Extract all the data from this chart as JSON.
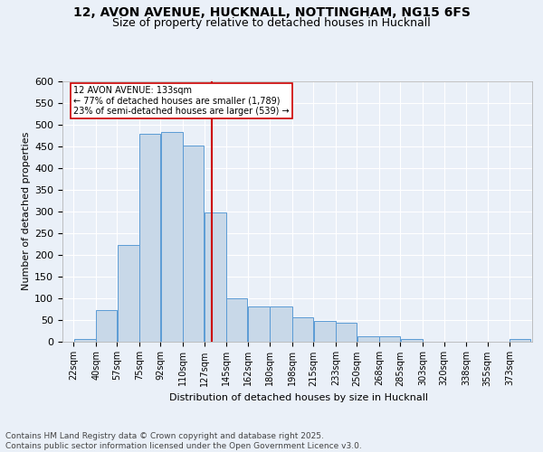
{
  "title1": "12, AVON AVENUE, HUCKNALL, NOTTINGHAM, NG15 6FS",
  "title2": "Size of property relative to detached houses in Hucknall",
  "xlabel": "Distribution of detached houses by size in Hucknall",
  "ylabel": "Number of detached properties",
  "bar_left_edges": [
    22,
    40,
    57,
    75,
    92,
    110,
    127,
    145,
    162,
    180,
    198,
    215,
    233,
    250,
    268,
    285,
    303,
    320,
    338,
    355,
    373
  ],
  "bar_widths": [
    18,
    17,
    18,
    17,
    18,
    17,
    18,
    17,
    18,
    18,
    17,
    18,
    17,
    18,
    17,
    18,
    17,
    18,
    17,
    18,
    17
  ],
  "bar_heights": [
    5,
    73,
    222,
    478,
    483,
    452,
    298,
    100,
    80,
    80,
    55,
    47,
    42,
    12,
    12,
    5,
    0,
    0,
    0,
    0,
    5
  ],
  "bar_face_color": "#c8d8e8",
  "bar_edge_color": "#5b9bd5",
  "vline_x": 133,
  "vline_color": "#cc0000",
  "annotation_title": "12 AVON AVENUE: 133sqm",
  "annotation_line1": "← 77% of detached houses are smaller (1,789)",
  "annotation_line2": "23% of semi-detached houses are larger (539) →",
  "annotation_box_color": "#ffffff",
  "annotation_border_color": "#cc0000",
  "tick_labels": [
    "22sqm",
    "40sqm",
    "57sqm",
    "75sqm",
    "92sqm",
    "110sqm",
    "127sqm",
    "145sqm",
    "162sqm",
    "180sqm",
    "198sqm",
    "215sqm",
    "233sqm",
    "250sqm",
    "268sqm",
    "285sqm",
    "303sqm",
    "320sqm",
    "338sqm",
    "355sqm",
    "373sqm"
  ],
  "tick_positions": [
    22,
    40,
    57,
    75,
    92,
    110,
    127,
    145,
    162,
    180,
    198,
    215,
    233,
    250,
    268,
    285,
    303,
    320,
    338,
    355,
    373
  ],
  "ylim": [
    0,
    600
  ],
  "yticks": [
    0,
    50,
    100,
    150,
    200,
    250,
    300,
    350,
    400,
    450,
    500,
    550,
    600
  ],
  "bg_color": "#eaf0f8",
  "plot_bg_color": "#eaf0f8",
  "footer_text": "Contains HM Land Registry data © Crown copyright and database right 2025.\nContains public sector information licensed under the Open Government Licence v3.0.",
  "grid_color": "#ffffff",
  "title_fontsize": 10,
  "subtitle_fontsize": 9,
  "axis_label_fontsize": 8,
  "tick_label_fontsize": 7,
  "footer_fontsize": 6.5
}
